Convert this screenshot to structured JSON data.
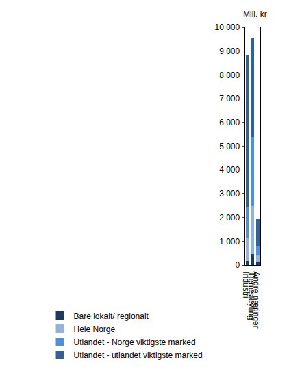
{
  "chart_data": {
    "type": "bar",
    "stacked": true,
    "y_label": "Mill. kr",
    "categories": [
      "Industri",
      "Tjenesteyting",
      "Andre næringer"
    ],
    "series": [
      {
        "name": "Bare lokalt/ regionalt",
        "color": "#1f3a5f",
        "values": [
          180,
          470,
          130
        ]
      },
      {
        "name": "Hele Norge",
        "color": "#95b3d7",
        "values": [
          970,
          2010,
          260
        ]
      },
      {
        "name": "Utlandet - Norge viktigste marked",
        "color": "#558ed5",
        "values": [
          1280,
          2920,
          430
        ]
      },
      {
        "name": "Utlandet - utlandet viktigste marked",
        "color": "#376092",
        "values": [
          6390,
          4170,
          1120
        ]
      }
    ],
    "ylim": [
      0,
      10000
    ],
    "yticks": [
      0,
      {
        "value": 1000,
        "label": "1 000"
      },
      {
        "value": 2000,
        "label": "2 000"
      },
      {
        "value": 3000,
        "label": "3 000"
      },
      {
        "value": 4000,
        "label": "4 000"
      },
      {
        "value": 5000,
        "label": "5 000"
      },
      {
        "value": 6000,
        "label": "6 000"
      },
      {
        "value": 7000,
        "label": "7 000"
      },
      {
        "value": 8000,
        "label": "8 000"
      },
      {
        "value": 9000,
        "label": "9 000"
      },
      {
        "value": 10000,
        "label": "10 000"
      }
    ],
    "grid": false,
    "legend": "bottom"
  }
}
